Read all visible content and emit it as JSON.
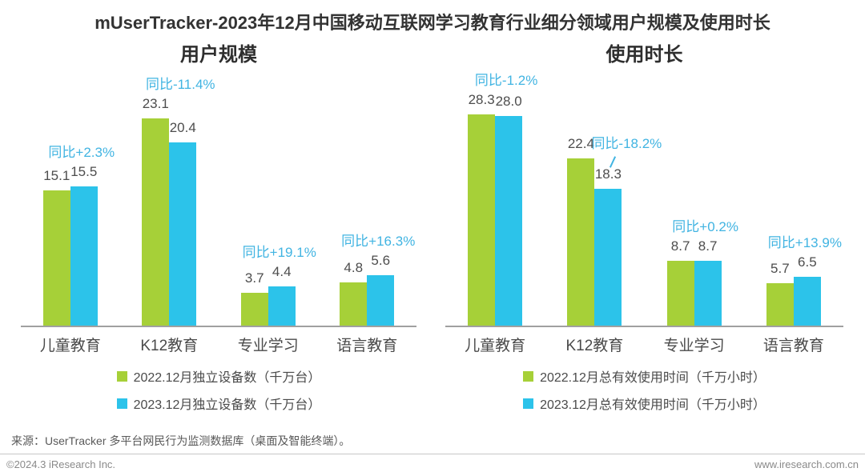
{
  "title": "mUserTracker-2023年12月中国移动互联网学习教育行业细分领域用户规模及使用时长",
  "source": "来源：UserTracker 多平台网民行为监测数据库（桌面及智能终端）。",
  "footer": {
    "left": "©2024.3 iResearch Inc.",
    "right": "www.iresearch.com.cn"
  },
  "colors": {
    "green": "#a6d038",
    "blue": "#2cc3ea",
    "yoy_text": "#41b4e2",
    "value_text": "#4d4d4d",
    "axis": "#a0a0a0"
  },
  "chart_data": [
    {
      "type": "bar",
      "title": "用户规模",
      "categories": [
        "儿童教育",
        "K12教育",
        "专业学习",
        "语言教育"
      ],
      "series": [
        {
          "name": "2022.12月独立设备数（千万台）",
          "color_key": "green",
          "values": [
            15.1,
            23.1,
            3.7,
            4.8
          ]
        },
        {
          "name": "2023.12月独立设备数（千万台）",
          "color_key": "blue",
          "values": [
            15.5,
            20.4,
            4.4,
            5.6
          ]
        }
      ],
      "annotations": [
        "同比+2.3%",
        "同比-11.4%",
        "同比+19.1%",
        "同比+16.3%"
      ],
      "callout_group": -1,
      "xlabel": "",
      "ylabel": "",
      "ylim": [
        0,
        27.8
      ],
      "grid": false,
      "legend_position": "bottom"
    },
    {
      "type": "bar",
      "title": "使用时长",
      "categories": [
        "儿童教育",
        "K12教育",
        "专业学习",
        "语言教育"
      ],
      "series": [
        {
          "name": "2022.12月总有效使用时间（千万小时）",
          "color_key": "green",
          "values": [
            28.3,
            22.4,
            8.7,
            5.7
          ]
        },
        {
          "name": "2023.12月总有效使用时间（千万小时）",
          "color_key": "blue",
          "values": [
            28.0,
            18.3,
            8.7,
            6.5
          ]
        }
      ],
      "annotations": [
        "同比-1.2%",
        "同比-18.2%",
        "同比+0.2%",
        "同比+13.9%"
      ],
      "callout_group": 1,
      "xlabel": "",
      "ylabel": "",
      "ylim": [
        0,
        33.4
      ],
      "grid": false,
      "legend_position": "bottom"
    }
  ]
}
